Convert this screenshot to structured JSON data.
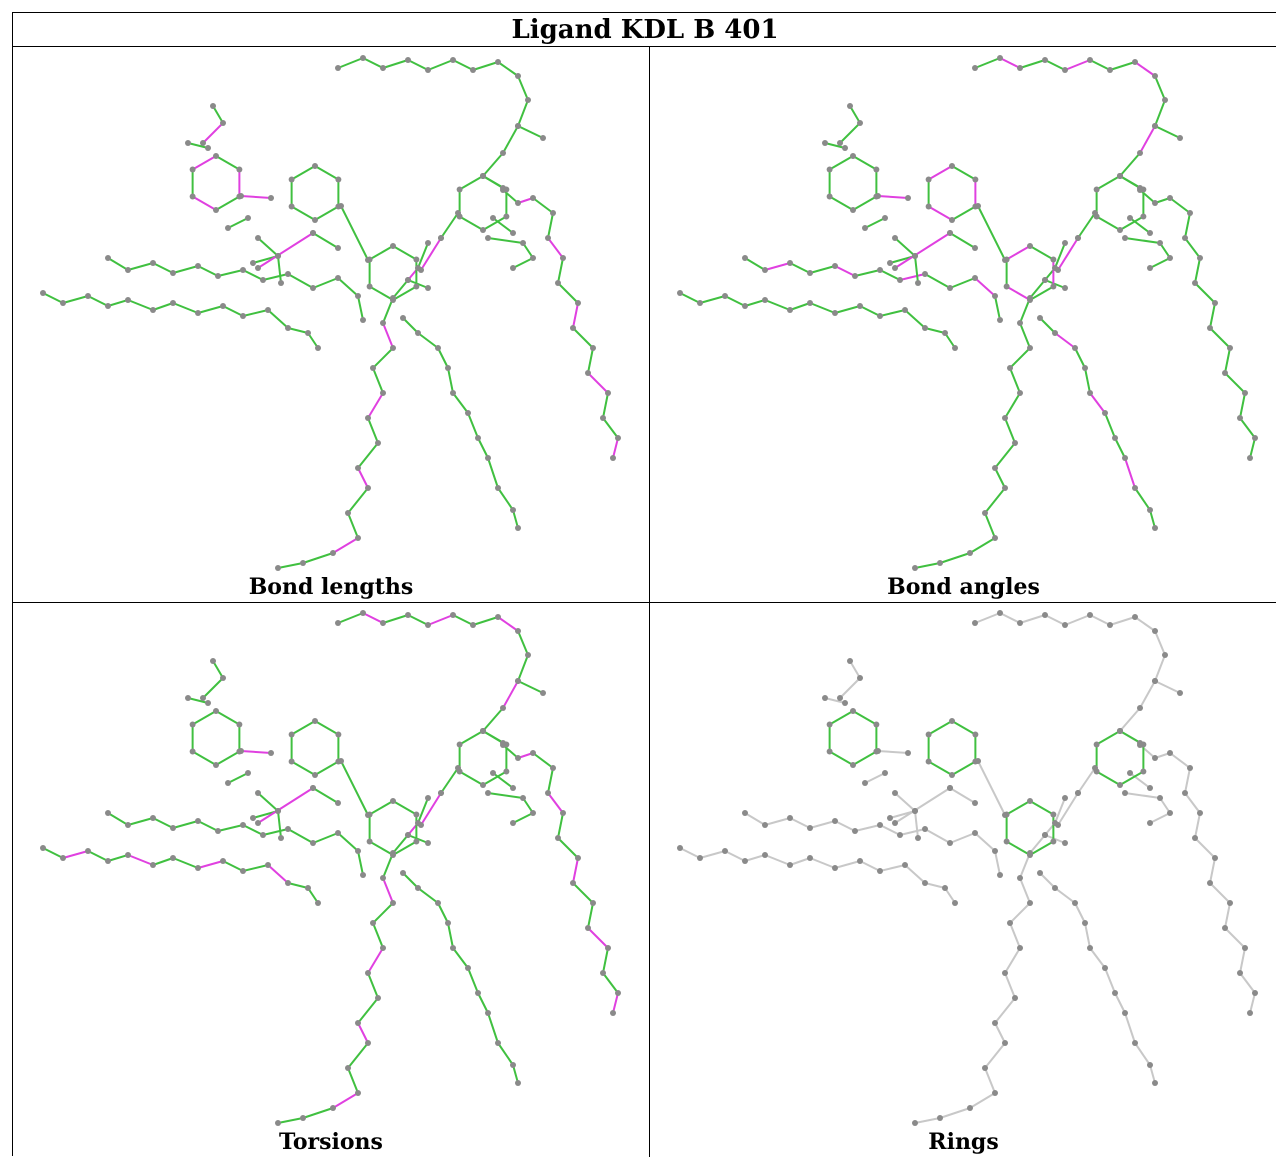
{
  "title": "Ligand KDL B 401",
  "panels": [
    {
      "id": "bond-lengths",
      "label": "Bond lengths"
    },
    {
      "id": "bond-angles",
      "label": "Bond angles"
    },
    {
      "id": "torsions",
      "label": "Torsions"
    },
    {
      "id": "rings",
      "label": "Rings"
    }
  ],
  "colors": {
    "atom": "#8a8a8a",
    "ok_bond": "#40c040",
    "outlier_bond": "#e040e0",
    "neutral_bond": "#c8c8c8"
  }
}
